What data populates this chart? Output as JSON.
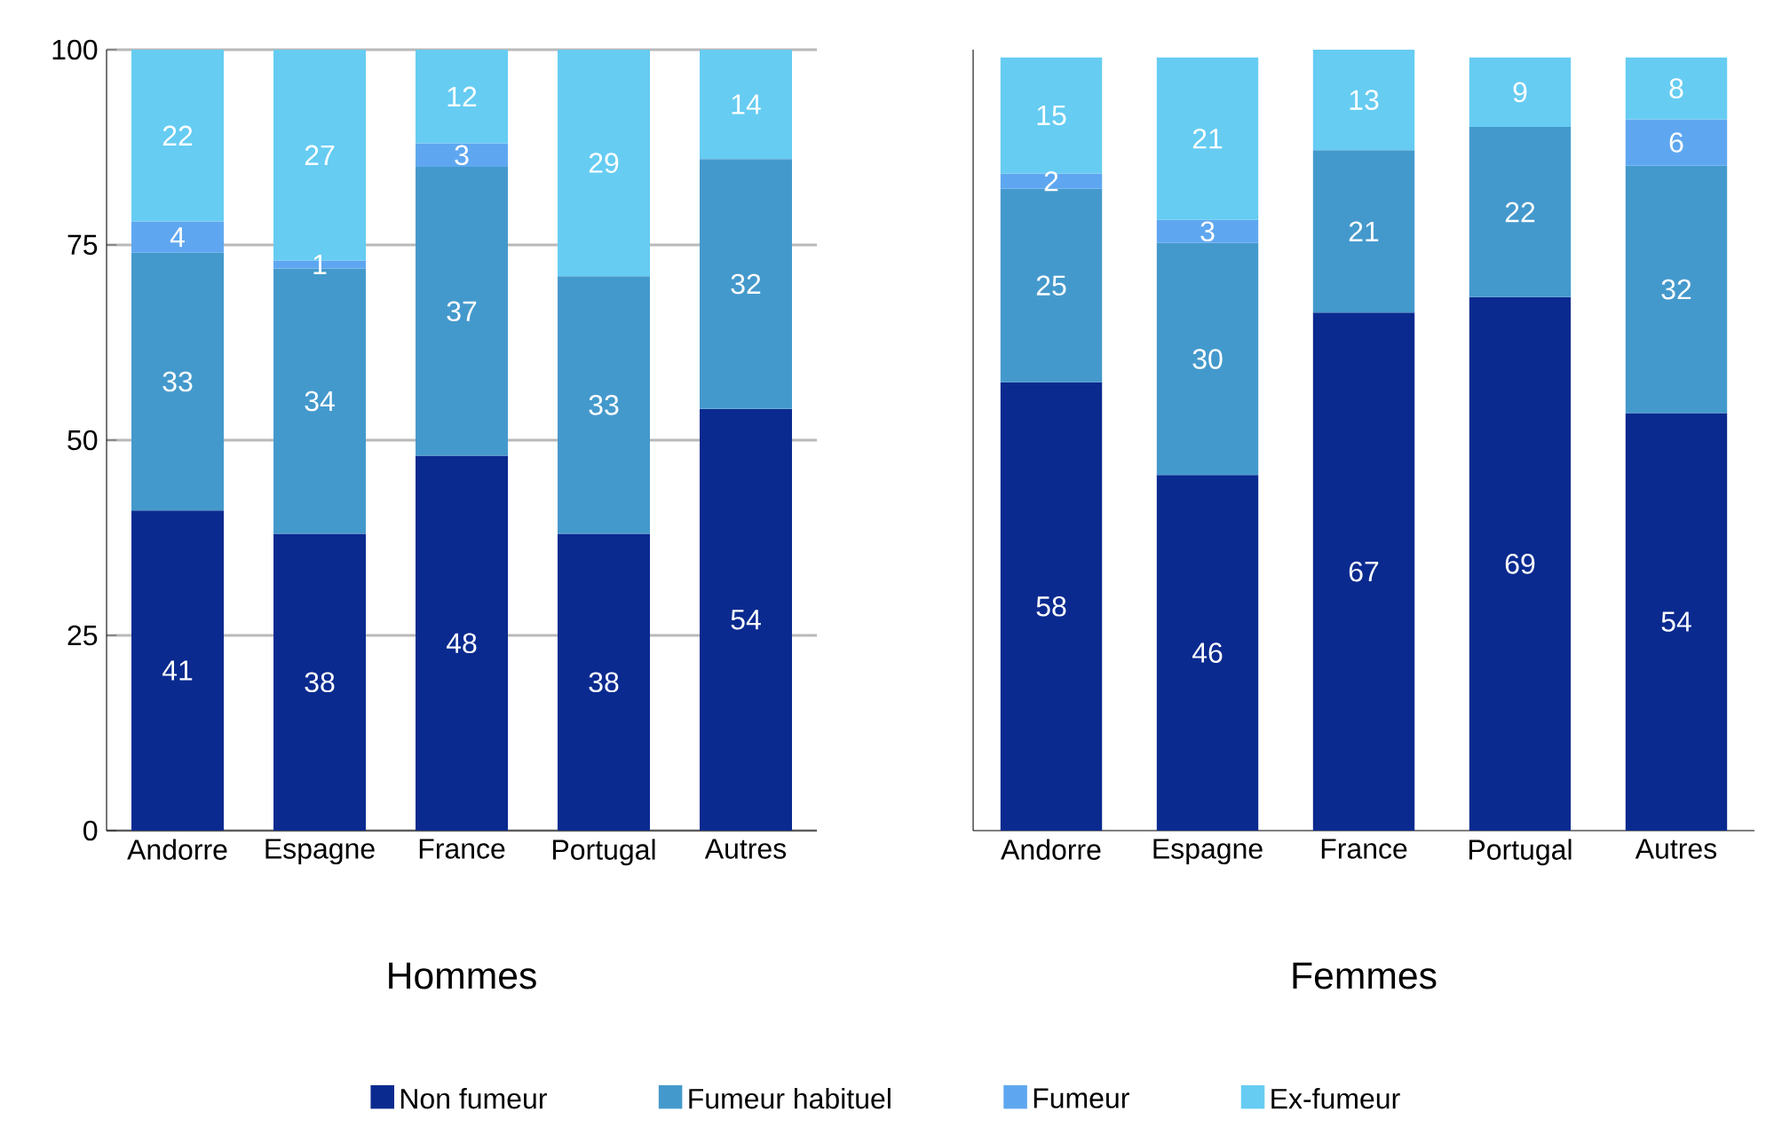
{
  "chart_data": [
    {
      "type": "bar",
      "stacked": true,
      "xlabel": "Hommes",
      "categories": [
        "Andorre",
        "Espagne",
        "France",
        "Portugal",
        "Autres"
      ],
      "ylim": [
        0,
        100
      ],
      "yticks": [
        0,
        25,
        50,
        75,
        100
      ],
      "grid": "y",
      "legend": "bottom",
      "data_labels": true,
      "series": [
        {
          "name": "Non fumeur",
          "color": "#0a2a8f",
          "values": [
            41,
            38,
            48,
            38,
            54
          ]
        },
        {
          "name": "Fumeur habituel",
          "color": "#4499cc",
          "values": [
            33,
            34,
            37,
            33,
            32
          ]
        },
        {
          "name": "Fumeur",
          "color": "#5ea7f0",
          "values": [
            4,
            1,
            3,
            null,
            null
          ]
        },
        {
          "name": "Ex-fumeur",
          "color": "#66ccf2",
          "values": [
            22,
            27,
            12,
            29,
            14
          ]
        }
      ]
    },
    {
      "type": "bar",
      "stacked": true,
      "xlabel": "Femmes",
      "categories": [
        "Andorre",
        "Espagne",
        "France",
        "Portugal",
        "Autres"
      ],
      "ylim": [
        0,
        101
      ],
      "tick_labels": "x",
      "data_labels": true,
      "series": [
        {
          "color": "#0a2a8f",
          "values": [
            58,
            46,
            67,
            69,
            54
          ]
        },
        {
          "color": "#4499cc",
          "values": [
            25,
            30,
            21,
            22,
            32
          ]
        },
        {
          "color": "#5ea7f0",
          "values": [
            2,
            3,
            null,
            null,
            6
          ]
        },
        {
          "color": "#66ccf2",
          "values": [
            15,
            21,
            13,
            9,
            8
          ]
        }
      ]
    }
  ]
}
